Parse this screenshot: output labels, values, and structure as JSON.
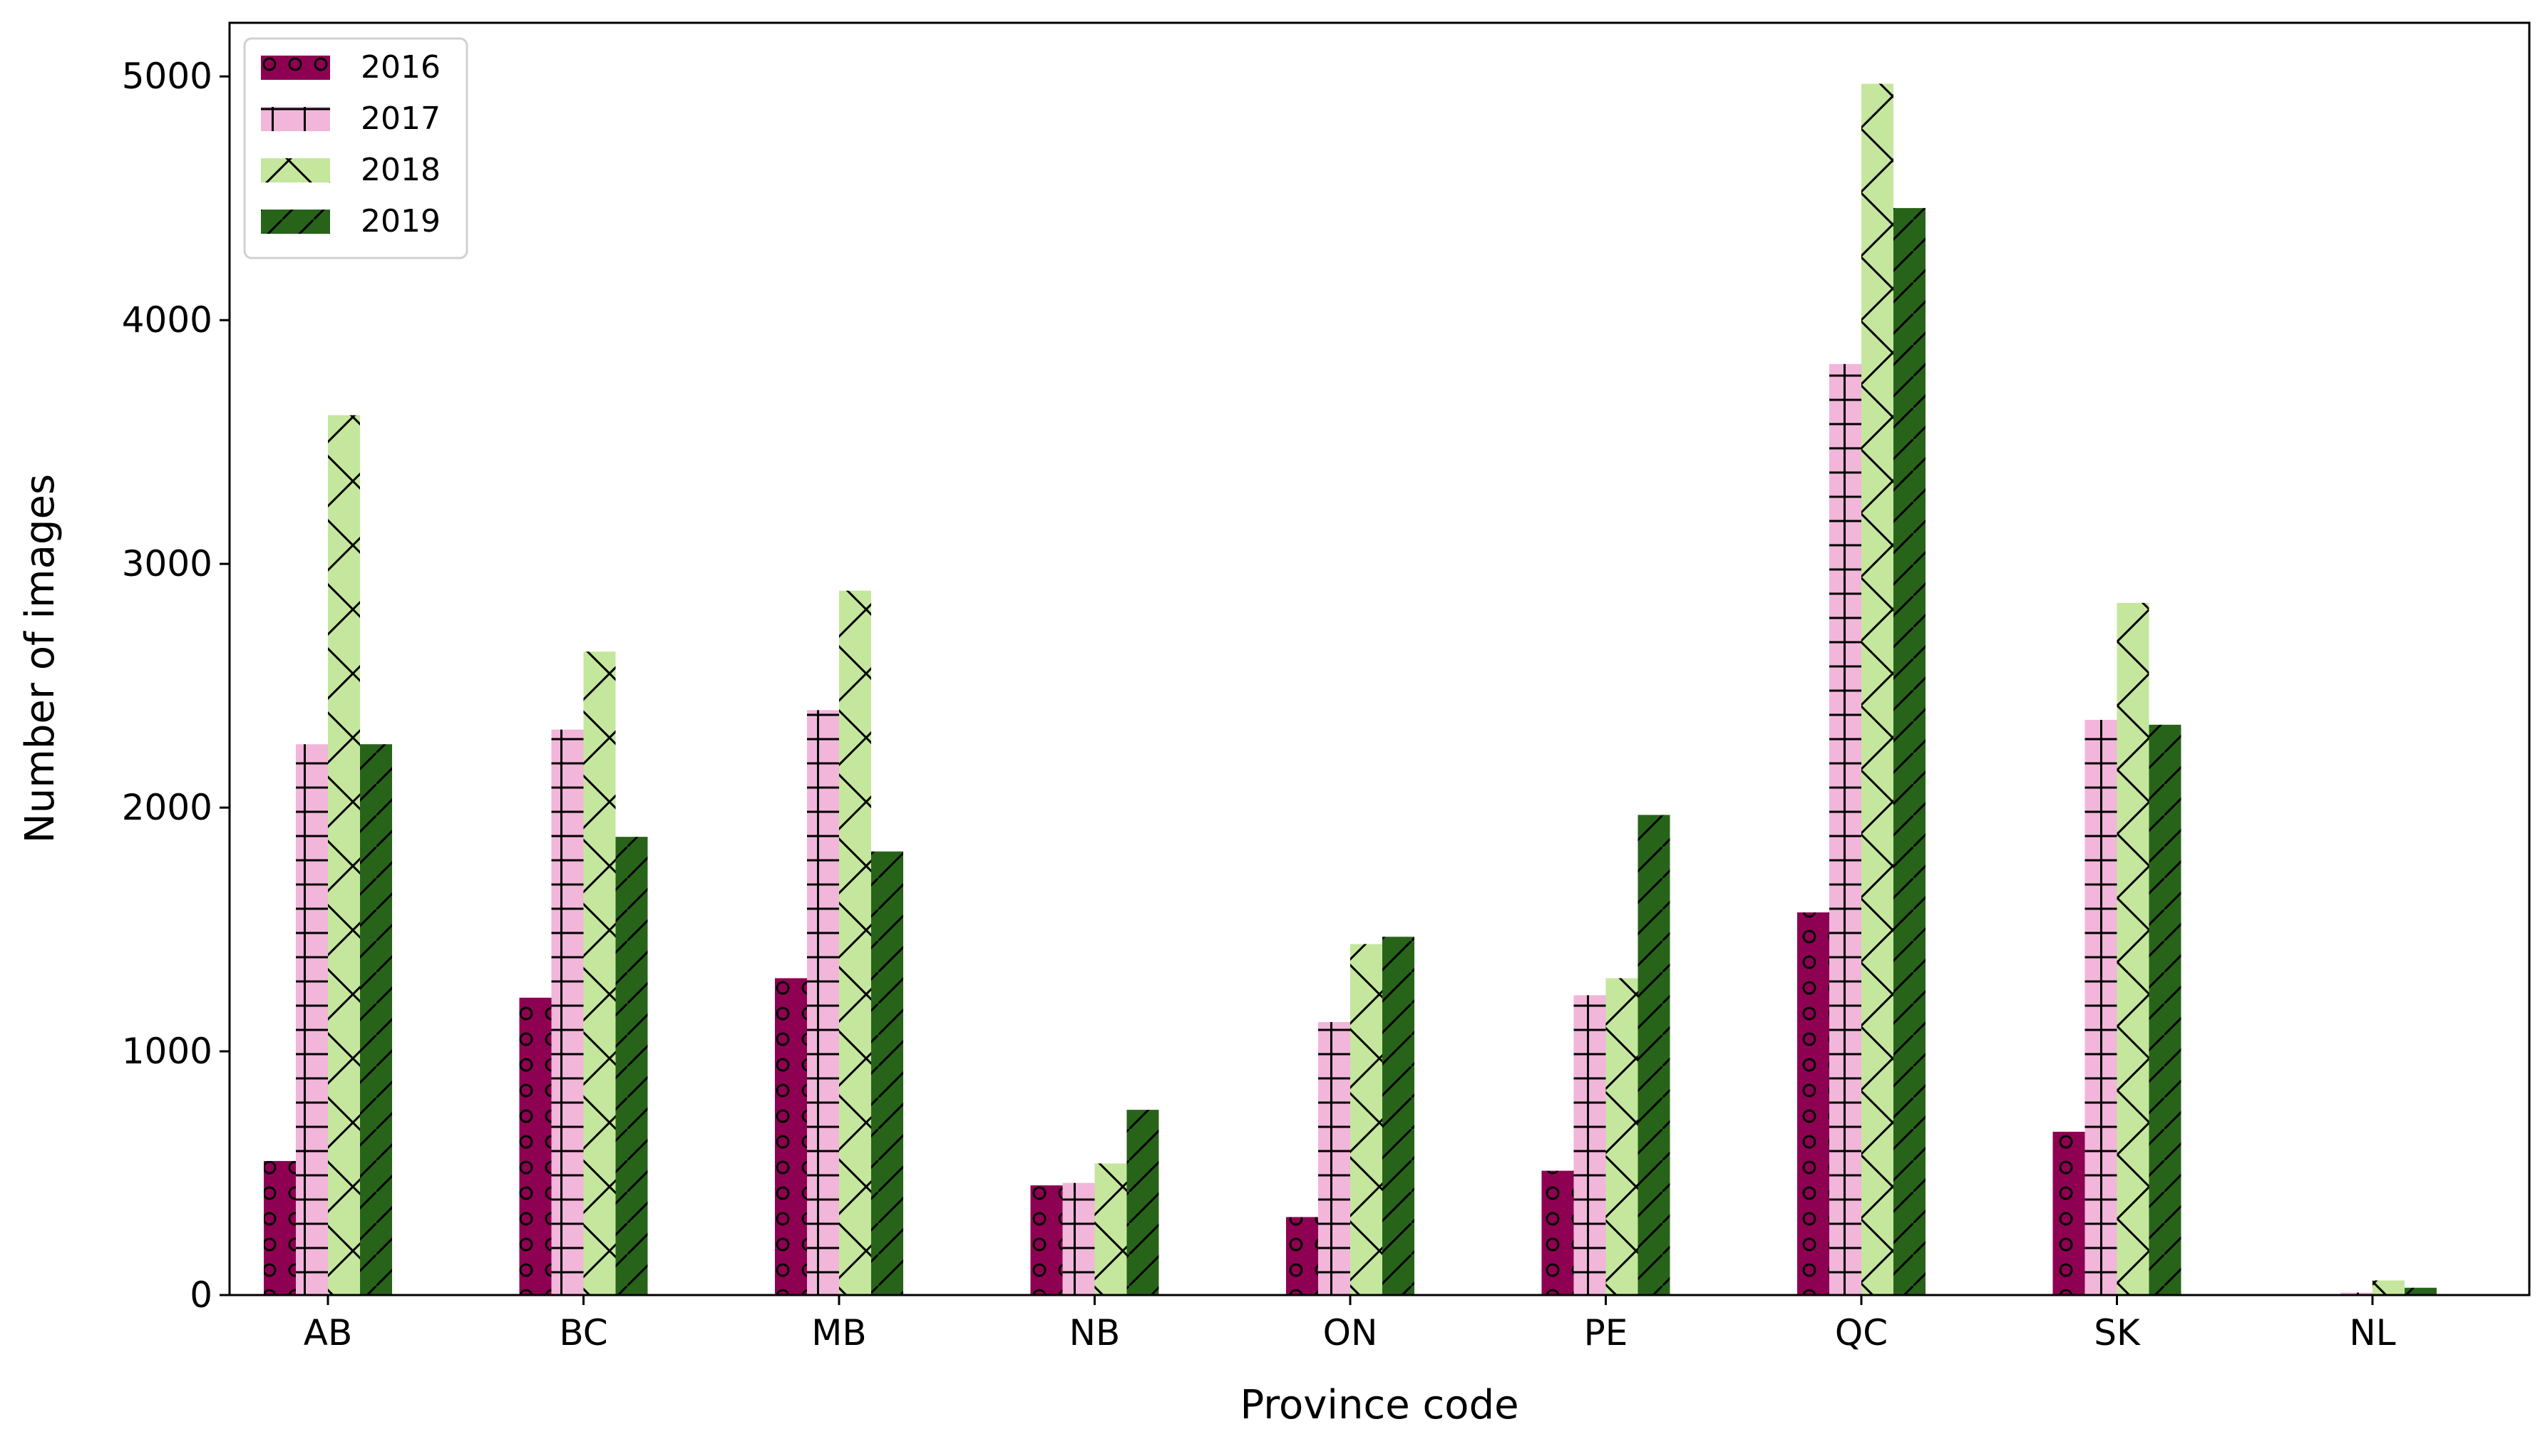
{
  "chart_data": {
    "type": "bar",
    "xlabel": "Province code",
    "ylabel": "Number of images",
    "ylim": [
      0,
      5220
    ],
    "yticks": [
      0,
      1000,
      2000,
      3000,
      4000,
      5000
    ],
    "categories": [
      "AB",
      "BC",
      "MB",
      "NB",
      "ON",
      "PE",
      "QC",
      "SK",
      "NL"
    ],
    "series": [
      {
        "name": "2016",
        "color": "#8e0152",
        "pattern": "circles",
        "values": [
          550,
          1220,
          1300,
          450,
          320,
          510,
          1570,
          670,
          0
        ]
      },
      {
        "name": "2017",
        "color": "#f1b6da",
        "pattern": "plus",
        "values": [
          2260,
          2320,
          2400,
          460,
          1120,
          1230,
          3820,
          2360,
          10
        ]
      },
      {
        "name": "2018",
        "color": "#c5e79d",
        "pattern": "cross",
        "values": [
          3610,
          2640,
          2890,
          540,
          1440,
          1300,
          4970,
          2840,
          60
        ]
      },
      {
        "name": "2019",
        "color": "#276419",
        "pattern": "diagonal",
        "values": [
          2260,
          1880,
          1820,
          760,
          1470,
          1970,
          4460,
          2340,
          30
        ]
      }
    ],
    "legend_position": "top-left",
    "grid": false
  }
}
